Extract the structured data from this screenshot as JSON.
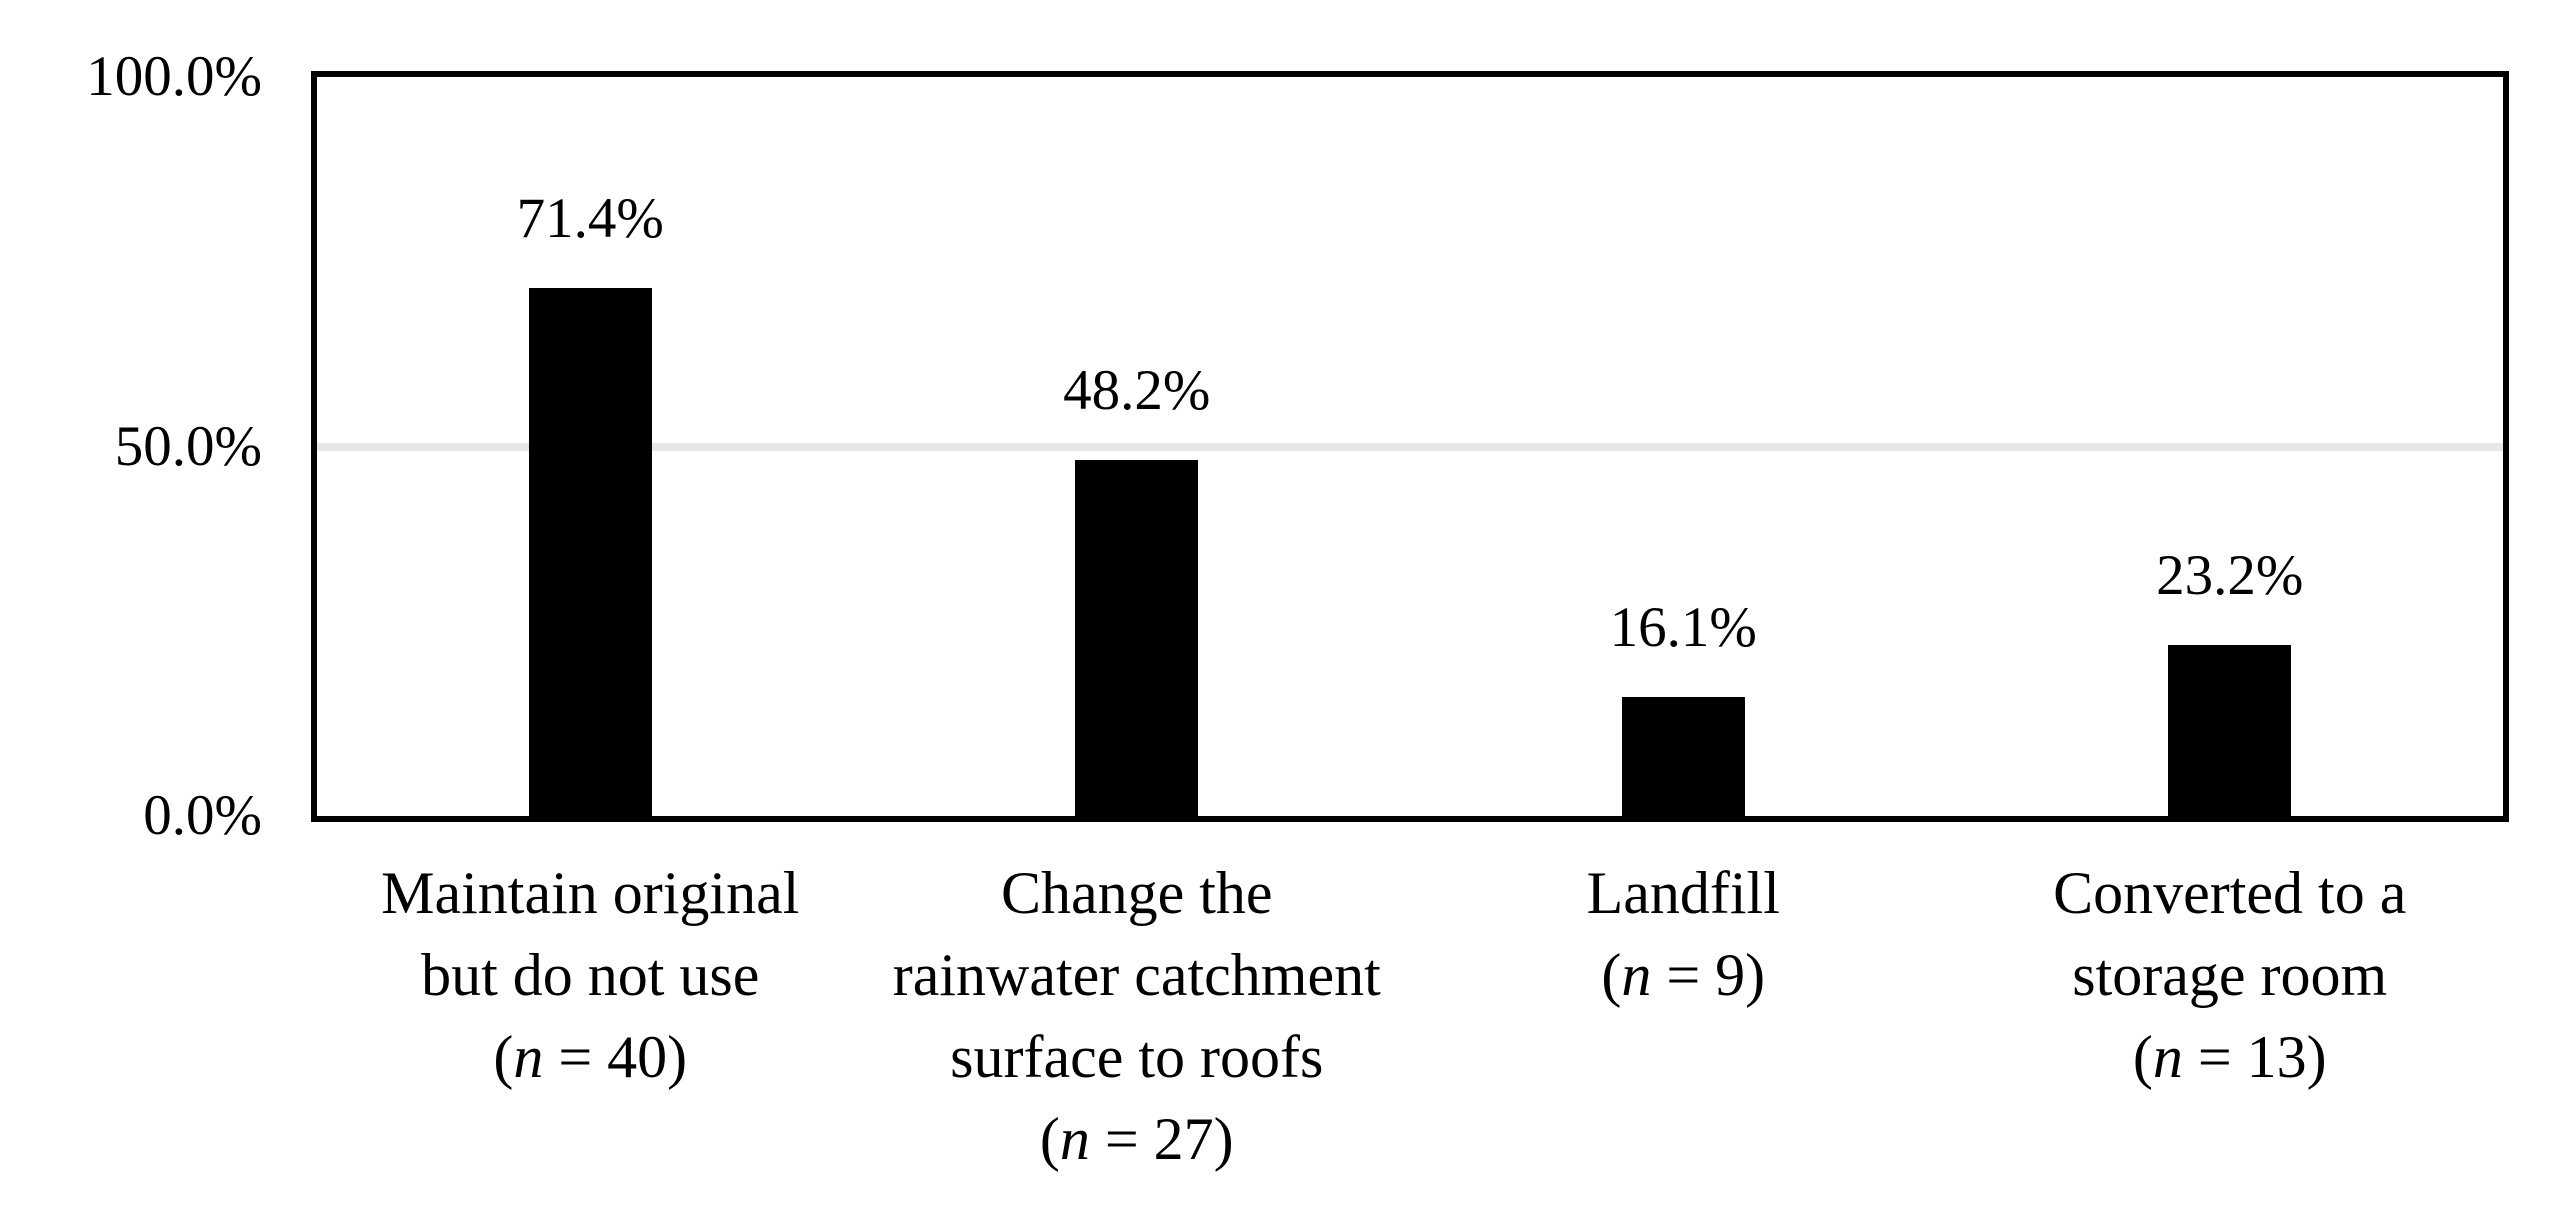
{
  "chart_data": {
    "type": "bar",
    "title": "",
    "xlabel": "",
    "ylabel": "",
    "legend_position": "none",
    "grid_on": true,
    "gridline_values": [
      50
    ],
    "ylim": [
      0,
      100
    ],
    "y_ticks": [
      {
        "label": "100.0%",
        "value": 100
      },
      {
        "label": "50.0%",
        "value": 50
      },
      {
        "label": "0.0%",
        "value": 0
      }
    ],
    "values": [
      71.4,
      48.2,
      16.1,
      23.2
    ],
    "value_labels": [
      "71.4%",
      "48.2%",
      "16.1%",
      "23.2%"
    ],
    "sample_sizes": [
      40,
      27,
      9,
      13
    ],
    "categories": [
      {
        "text": "Maintain original but do not use (n = 40)",
        "lines": [
          [
            {
              "t": "Maintain original",
              "italic": false
            }
          ],
          [
            {
              "t": "but do not use",
              "italic": false
            }
          ],
          [
            {
              "t": "(",
              "italic": false
            },
            {
              "t": "n",
              "italic": true
            },
            {
              "t": " = 40)",
              "italic": false
            }
          ]
        ]
      },
      {
        "text": "Change the rainwater catchment surface to roofs (n = 27)",
        "lines": [
          [
            {
              "t": "Change the",
              "italic": false
            }
          ],
          [
            {
              "t": "rainwater catchment",
              "italic": false
            }
          ],
          [
            {
              "t": "surface to roofs",
              "italic": false
            }
          ],
          [
            {
              "t": "(",
              "italic": false
            },
            {
              "t": "n",
              "italic": true
            },
            {
              "t": " = 27)",
              "italic": false
            }
          ]
        ]
      },
      {
        "text": "Landfill (n = 9)",
        "lines": [
          [
            {
              "t": "Landfill",
              "italic": false
            }
          ],
          [
            {
              "t": "(",
              "italic": false
            },
            {
              "t": "n",
              "italic": true
            },
            {
              "t": " = 9)",
              "italic": false
            }
          ]
        ]
      },
      {
        "text": "Converted to a storage room (n = 13)",
        "lines": [
          [
            {
              "t": "Converted to a",
              "italic": false
            }
          ],
          [
            {
              "t": "storage room",
              "italic": false
            }
          ],
          [
            {
              "t": "(",
              "italic": false
            },
            {
              "t": "n",
              "italic": true
            },
            {
              "t": " = 13)",
              "italic": false
            }
          ]
        ]
      }
    ],
    "colors": {
      "bar": "#000000",
      "border": "#000000",
      "gridline": "#e7e7e7",
      "text": "#000000",
      "background": "#ffffff"
    }
  }
}
